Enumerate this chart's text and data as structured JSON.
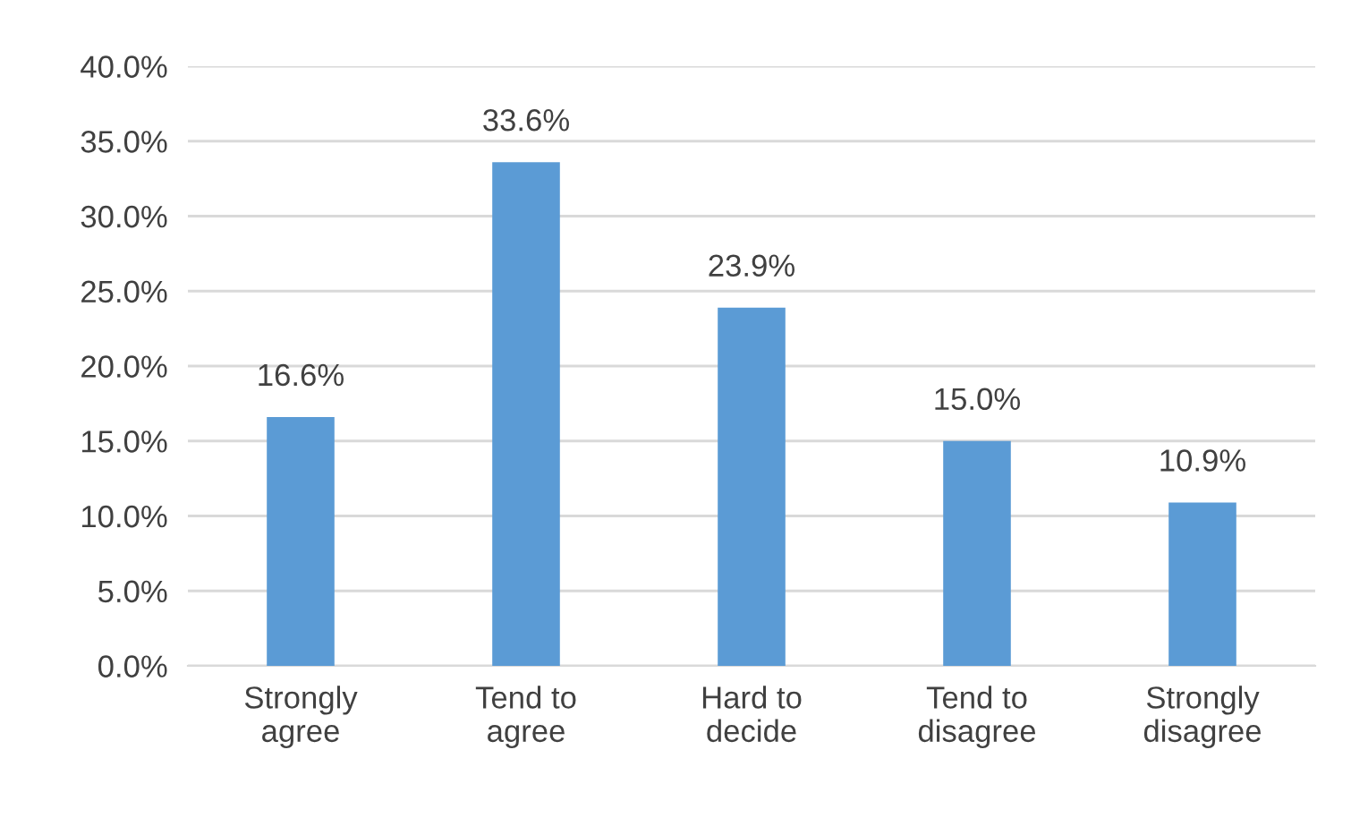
{
  "chart_data": {
    "type": "bar",
    "categories": [
      "Strongly\nagree",
      "Tend to\nagree",
      "Hard to\ndecide",
      "Tend to\ndisagree",
      "Strongly\ndisagree"
    ],
    "values": [
      16.6,
      33.6,
      23.9,
      15.0,
      10.9
    ],
    "value_labels": [
      "16.6%",
      "33.6%",
      "23.9%",
      "15.0%",
      "10.9%"
    ],
    "color": "#5b9bd5",
    "ylim": [
      0,
      40
    ],
    "yticks": [
      {
        "value": 0,
        "label": "0.0%"
      },
      {
        "value": 5,
        "label": "5.0%"
      },
      {
        "value": 10,
        "label": "10.0%"
      },
      {
        "value": 15,
        "label": "15.0%"
      },
      {
        "value": 20,
        "label": "20.0%"
      },
      {
        "value": 25,
        "label": "25.0%"
      },
      {
        "value": 30,
        "label": "30.0%"
      },
      {
        "value": 35,
        "label": "35.0%"
      },
      {
        "value": 40,
        "label": "40.0%"
      }
    ],
    "grid": "y",
    "legend": false
  }
}
